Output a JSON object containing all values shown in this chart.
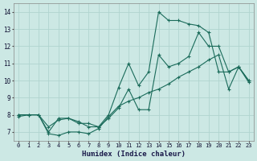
{
  "xlabel": "Humidex (Indice chaleur)",
  "background_color": "#cce8e4",
  "grid_color": "#b0d4cf",
  "line_color": "#1a6b5a",
  "xlim": [
    -0.5,
    23.5
  ],
  "ylim": [
    6.5,
    14.5
  ],
  "xticks": [
    0,
    1,
    2,
    3,
    4,
    5,
    6,
    7,
    8,
    9,
    10,
    11,
    12,
    13,
    14,
    15,
    16,
    17,
    18,
    19,
    20,
    21,
    22,
    23
  ],
  "yticks": [
    7,
    8,
    9,
    10,
    11,
    12,
    13,
    14
  ],
  "series": [
    {
      "x": [
        0,
        1,
        2,
        3,
        4,
        5,
        6,
        7,
        8,
        9,
        10,
        11,
        12,
        13,
        14,
        15,
        16,
        17,
        18,
        19,
        20,
        21,
        22,
        23
      ],
      "y": [
        8.0,
        8.0,
        8.0,
        7.0,
        7.8,
        7.8,
        7.5,
        7.5,
        7.3,
        8.0,
        9.6,
        11.0,
        9.7,
        10.5,
        14.0,
        13.5,
        13.5,
        13.3,
        13.2,
        12.8,
        10.5,
        10.5,
        10.8,
        10.0
      ]
    },
    {
      "x": [
        0,
        1,
        2,
        3,
        4,
        5,
        6,
        7,
        8,
        9,
        10,
        11,
        12,
        13,
        14,
        15,
        16,
        17,
        18,
        19,
        20,
        21,
        22,
        23
      ],
      "y": [
        8.0,
        8.0,
        8.0,
        7.3,
        7.7,
        7.8,
        7.6,
        7.3,
        7.3,
        7.8,
        8.4,
        9.5,
        8.3,
        8.3,
        11.5,
        10.8,
        11.0,
        11.4,
        12.8,
        12.0,
        12.0,
        10.5,
        10.8,
        9.9
      ]
    },
    {
      "x": [
        0,
        1,
        2,
        3,
        4,
        5,
        6,
        7,
        8,
        9,
        10,
        11,
        12,
        13,
        14,
        15,
        16,
        17,
        18,
        19,
        20,
        21,
        22,
        23
      ],
      "y": [
        7.9,
        8.0,
        8.0,
        6.9,
        6.8,
        7.0,
        7.0,
        6.9,
        7.2,
        7.9,
        8.5,
        8.8,
        9.0,
        9.3,
        9.5,
        9.8,
        10.2,
        10.5,
        10.8,
        11.2,
        11.5,
        9.5,
        10.8,
        10.0
      ]
    }
  ]
}
